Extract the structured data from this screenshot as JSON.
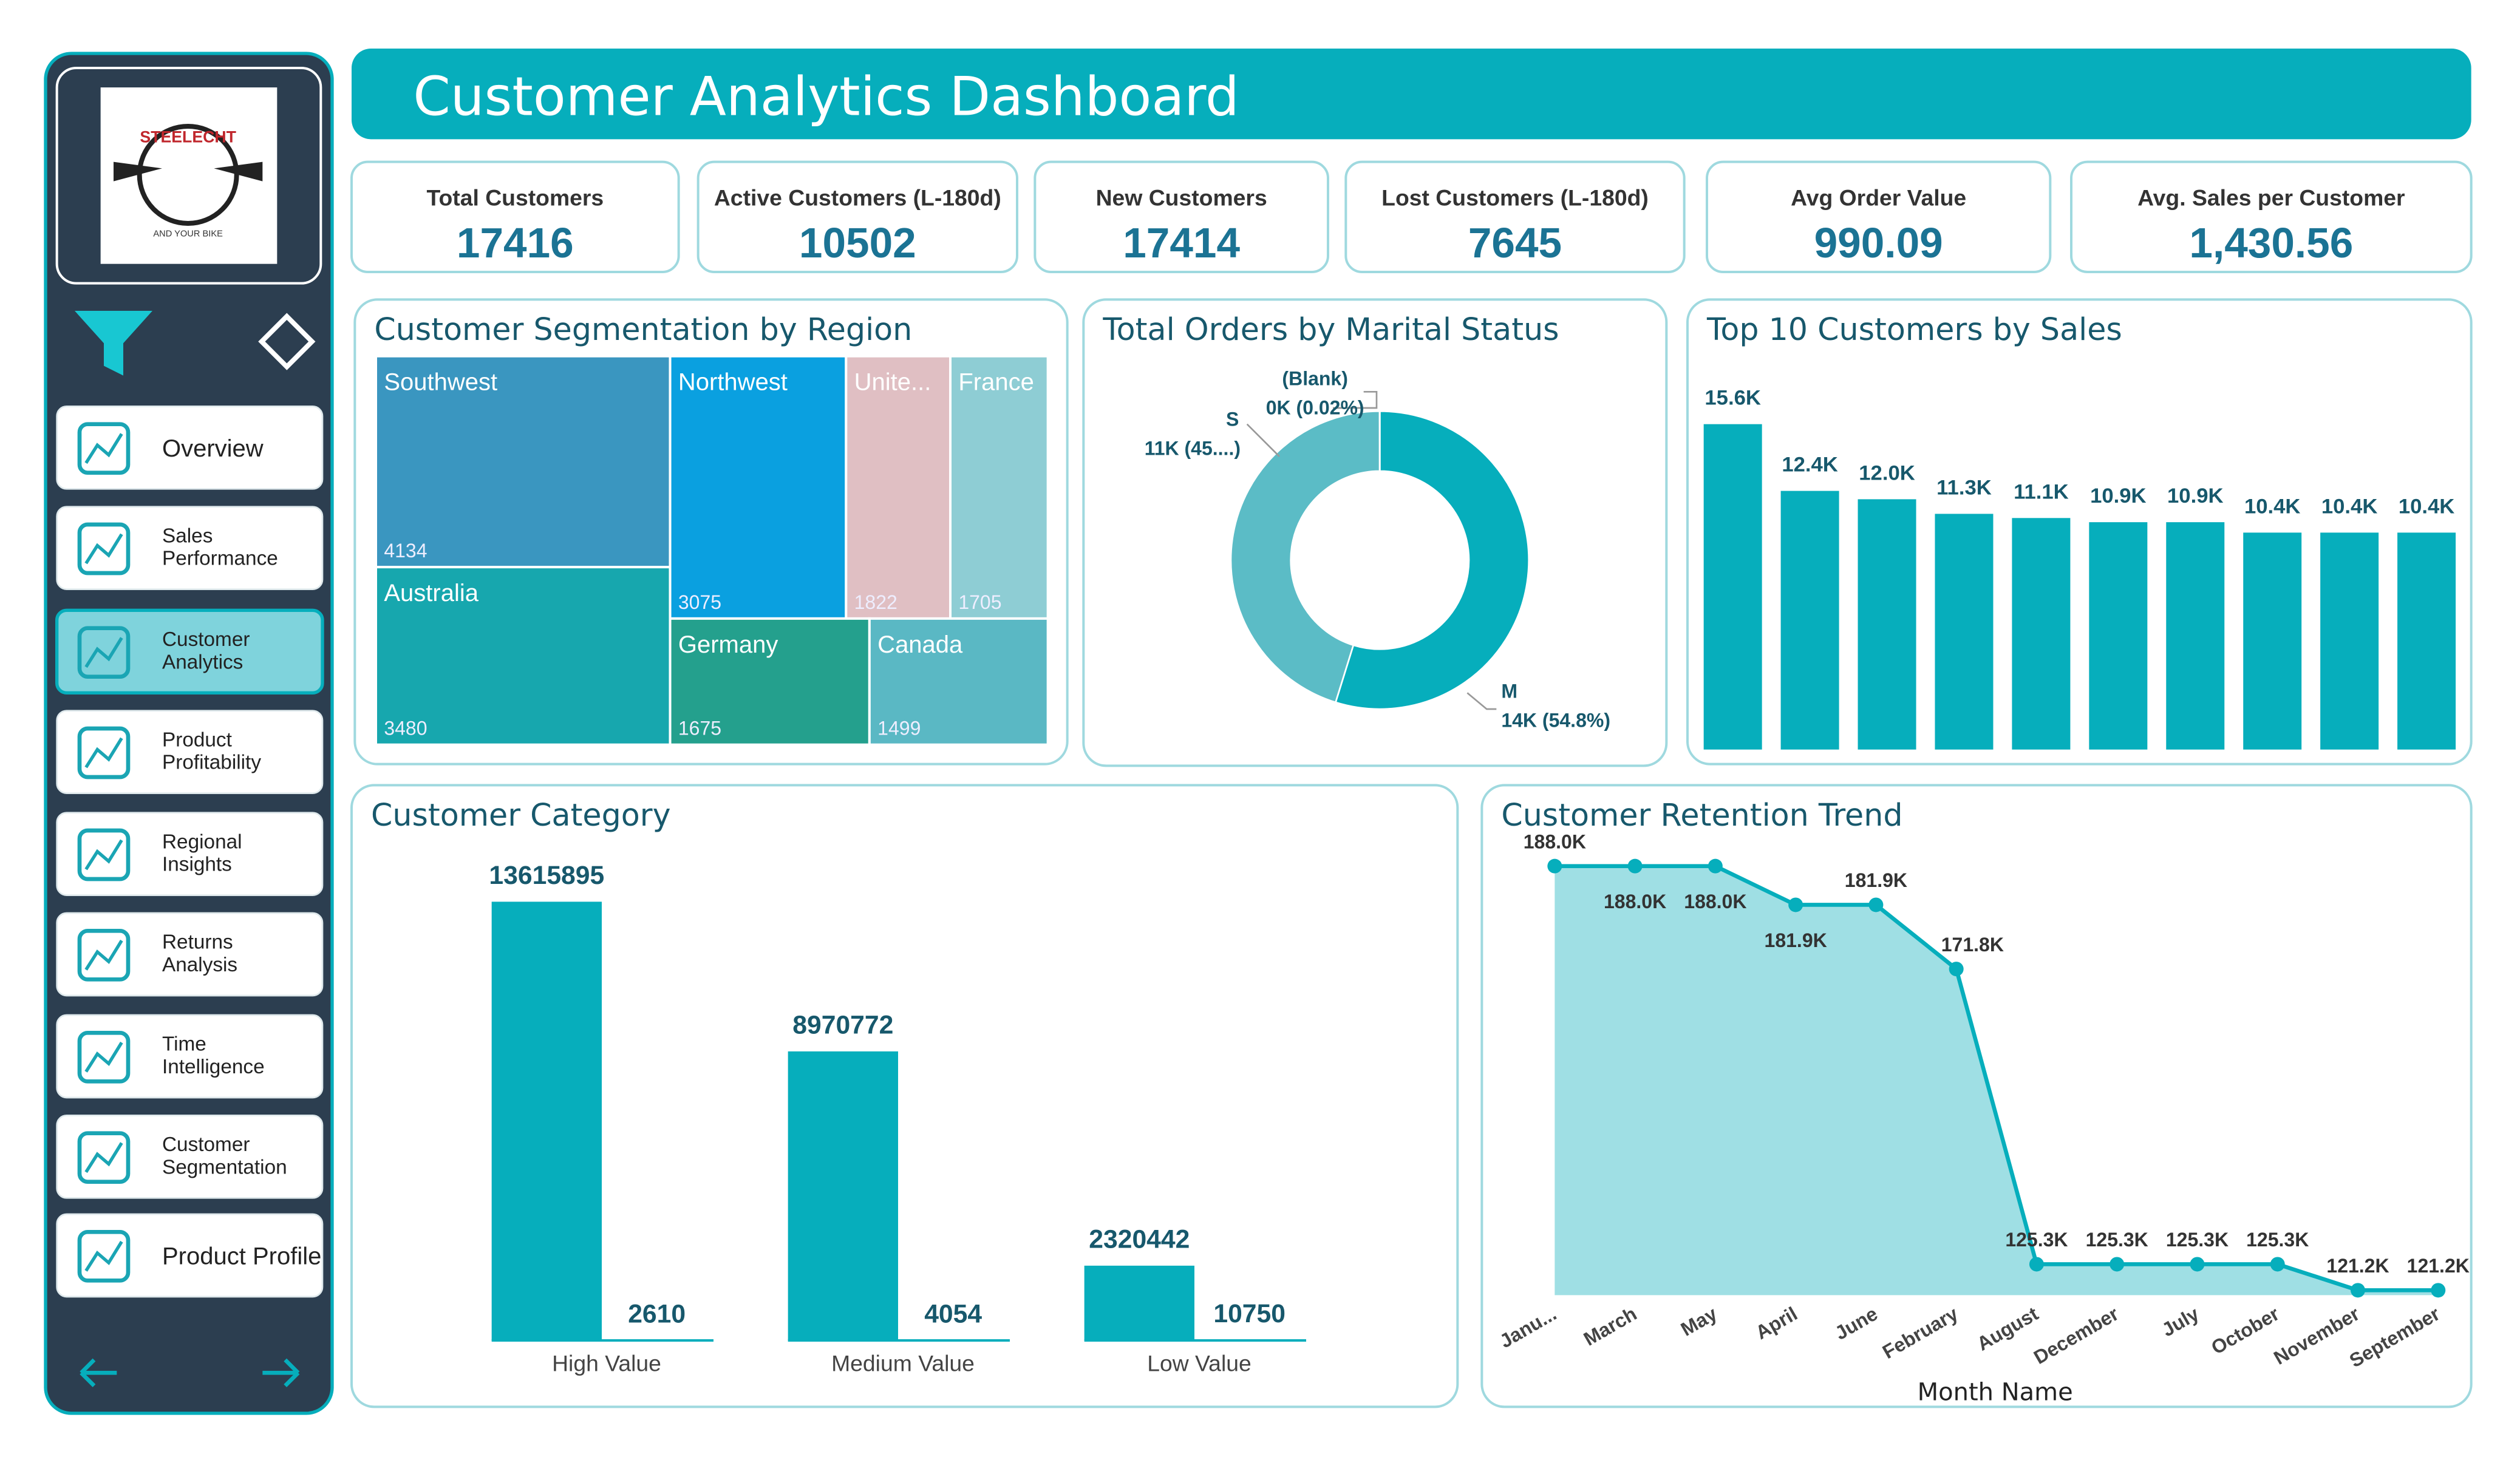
{
  "header": {
    "title": "Customer Analytics Dashboard"
  },
  "logo": {
    "text": "STEELECHT",
    "tagline": "AND YOUR BIKE"
  },
  "sidebar": {
    "nav": [
      "Overview",
      "Sales Performance",
      "Customer Analytics",
      "Product Profitability",
      "Regional Insights",
      "Returns Analysis",
      "Time Intelligence",
      "Customer Segmentation",
      "Product Profile"
    ],
    "active": 2
  },
  "kpis": [
    {
      "label": "Total Customers",
      "value": "17416"
    },
    {
      "label": "Active Customers (L-180d)",
      "value": "10502"
    },
    {
      "label": "New Customers",
      "value": "17414"
    },
    {
      "label": "Lost Customers (L-180d)",
      "value": "7645"
    },
    {
      "label": "Avg Order Value",
      "value": "990.09"
    },
    {
      "label": "Avg. Sales per Customer",
      "value": "1,430.56"
    }
  ],
  "chart_data": [
    {
      "type": "treemap",
      "title": "Customer Segmentation by Region",
      "categories": [
        "Southwest",
        "Northwest",
        "Unite...",
        "France",
        "Australia",
        "Germany",
        "Canada"
      ],
      "values": [
        4134,
        3075,
        1822,
        1705,
        3480,
        1675,
        1499
      ],
      "colors": [
        "#3a96c0",
        "#0aa0e0",
        "#e0bfc3",
        "#8ecdd4",
        "#17a7ae",
        "#24a08d",
        "#5ab8c4"
      ]
    },
    {
      "type": "donut",
      "title": "Total Orders by Marital Status",
      "categories": [
        "M",
        "S",
        "(Blank)"
      ],
      "values": [
        54.8,
        45.18,
        0.02
      ],
      "value_labels": [
        "14K (54.8%)",
        "11K (45....)",
        "0K (0.02%)"
      ],
      "colors": [
        "#06aebc",
        "#5bbcc6",
        "#9aa5aa"
      ]
    },
    {
      "type": "bar",
      "title": "Top 10 Customers by Sales",
      "categories": [
        null,
        null,
        null,
        null,
        null,
        null,
        null,
        null,
        null,
        null
      ],
      "values": [
        15.6,
        12.4,
        12.0,
        11.3,
        11.1,
        10.9,
        10.9,
        10.4,
        10.4,
        10.4
      ],
      "value_labels": [
        "15.6K",
        "12.4K",
        "12.0K",
        "11.3K",
        "11.1K",
        "10.9K",
        "10.9K",
        "10.4K",
        "10.4K",
        "10.4K"
      ],
      "color": "#06aebc"
    },
    {
      "type": "grouped_bar",
      "title": "Customer Category",
      "categories": [
        "High Value",
        "Medium Value",
        "Low Value"
      ],
      "series": [
        {
          "color": "#06aebc",
          "values": [
            13615895,
            8970772,
            2320442
          ]
        },
        {
          "color": "#06aebc",
          "values": [
            2610,
            4054,
            10750
          ]
        }
      ]
    },
    {
      "type": "area",
      "title": "Customer Retention Trend",
      "x_label": "Month Name",
      "categories": [
        "Janu...",
        "March",
        "May",
        "April",
        "June",
        "February",
        "August",
        "December",
        "July",
        "October",
        "November",
        "September"
      ],
      "values": [
        188.0,
        188.0,
        188.0,
        181.9,
        181.9,
        171.8,
        125.3,
        125.3,
        125.3,
        125.3,
        121.2,
        121.2
      ],
      "value_labels": [
        "188.0K",
        "188.0K",
        "188.0K",
        "181.9K",
        "181.9K",
        "171.8K",
        "125.3K",
        "125.3K",
        "125.3K",
        "125.3K",
        "121.2K",
        "121.2K"
      ],
      "color": "#06aebc"
    }
  ]
}
